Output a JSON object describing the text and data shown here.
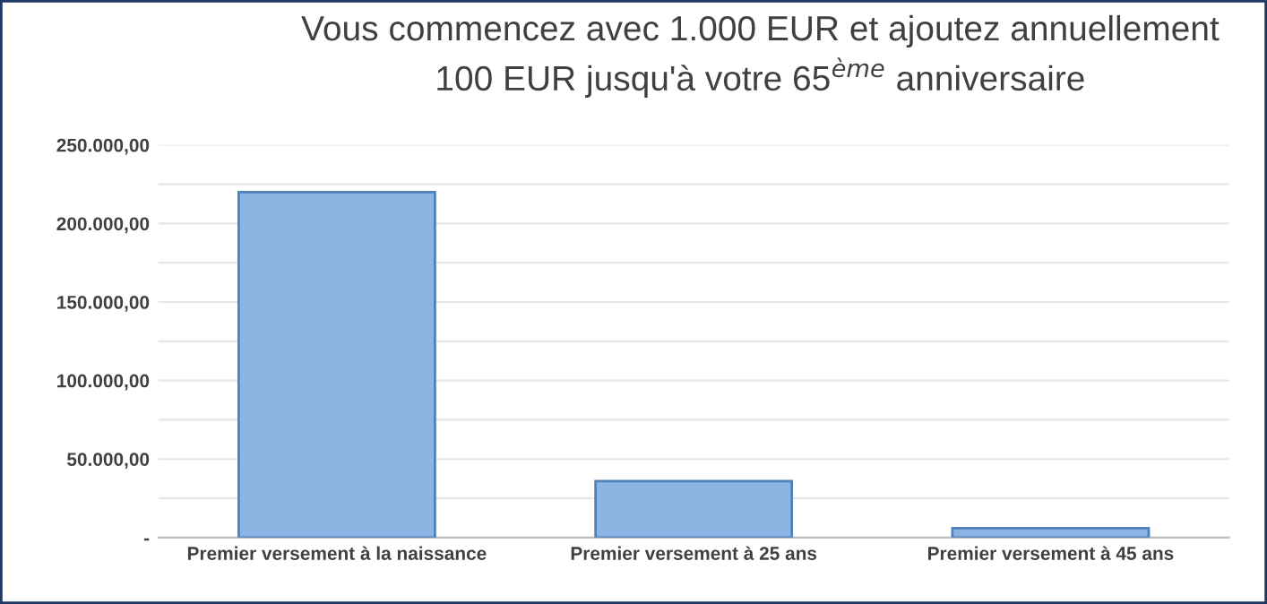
{
  "chart_data": {
    "type": "bar",
    "title": "Vous commencez avec 1.000 EUR et ajoutez annuellement\n100 EUR jusqu'à votre 65$^{ème}$ anniversaire",
    "categories": [
      "Premier versement à la naissance",
      "Premier versement à 25 ans",
      "Premier versement à 45 ans"
    ],
    "values": [
      220000,
      36000,
      6000
    ],
    "color": "#8db4e2",
    "ylim": [
      0,
      250000
    ],
    "yticks": [
      {
        "value": 0,
        "label": "-"
      },
      {
        "value": 25000,
        "label": null
      },
      {
        "value": 50000,
        "label": "50.000,00"
      },
      {
        "value": 75000,
        "label": null
      },
      {
        "value": 100000,
        "label": "100.000,00"
      },
      {
        "value": 125000,
        "label": null
      },
      {
        "value": 150000,
        "label": "150.000,00"
      },
      {
        "value": 175000,
        "label": null
      },
      {
        "value": 200000,
        "label": "200.000,00"
      },
      {
        "value": 225000,
        "label": null
      },
      {
        "value": 250000,
        "label": "250.000,00"
      }
    ],
    "grid": "y"
  }
}
